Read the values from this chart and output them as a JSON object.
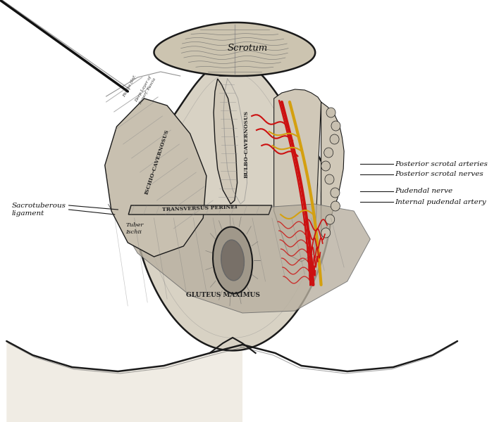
{
  "bg": "#ffffff",
  "outline": "#1a1a1a",
  "colors": {
    "tissue_light": "#d8d2c4",
    "tissue_mid": "#c0b8a8",
    "tissue_dark": "#a09880",
    "muscle_fill": "#b8b0a0",
    "scrotal_fill": "#ccc4b0",
    "artery_red": "#cc1111",
    "nerve_yellow": "#d4a010",
    "text_dark": "#111111",
    "white": "#ffffff",
    "near_white": "#f0ece4"
  },
  "labels": {
    "scrotum": "Scrotum",
    "bulbo_cavernosus": "BULBO-CAVERNOSUS",
    "ischio_cavernosus": "ISCHIO-CAVERNOSUS",
    "transversus_perinei": "TRANSVERSUS PERINEI",
    "gluteus_maximus": "GLUTEUS MAXIMUS",
    "tuber_ischii": "Tuber\nIschii",
    "sacrotuberous": "Sacrotuberous\nligament",
    "post_scrot_art": "Posterior scrotal arteries",
    "post_scrot_nerv": "Posterior scrotal nerves",
    "pudendal_nerve": "Pudendal nerve",
    "int_pudendal_art": "Internal pudendal artery"
  }
}
